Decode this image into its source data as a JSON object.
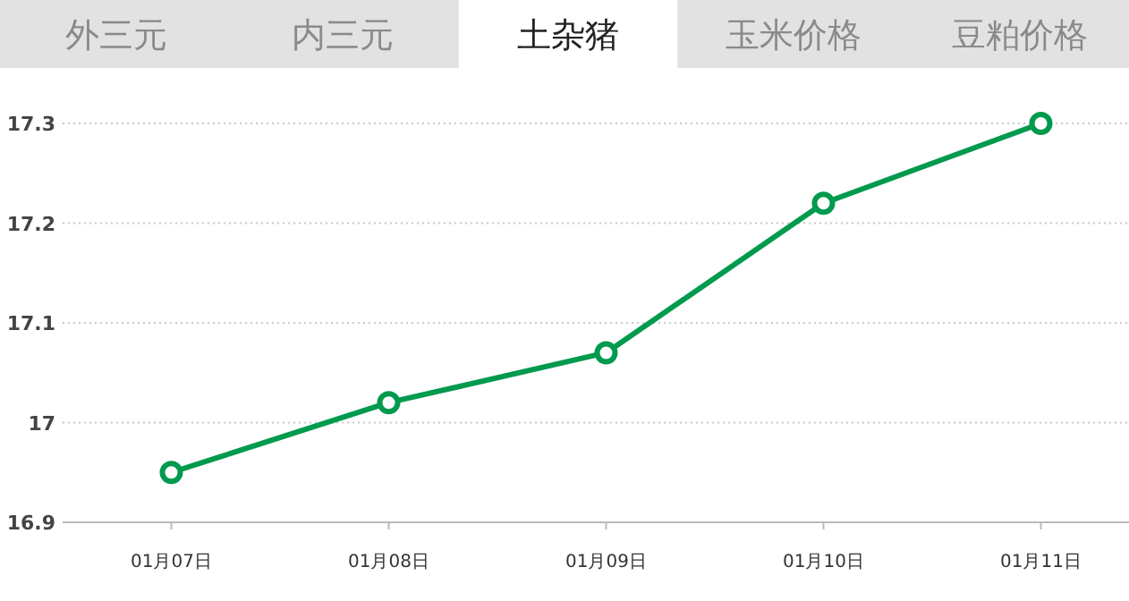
{
  "chart_data": {
    "type": "line",
    "title": "土杂猪",
    "annotations": [
      "外三元",
      "内三元",
      "玉米价格",
      "豆粕价格"
    ],
    "categories": [
      "01月07日",
      "01月08日",
      "01月09日",
      "01月10日",
      "01月11日"
    ],
    "series": [
      {
        "color": "#009a4e",
        "values": [
          16.95,
          17.02,
          17.07,
          17.22,
          17.3
        ]
      }
    ],
    "ylim": [
      16.9,
      17.3
    ],
    "yticks": [
      16.9,
      17,
      17.1,
      17.2,
      17.3
    ],
    "grid": "y",
    "marker": "circle",
    "line_style": "solid"
  }
}
